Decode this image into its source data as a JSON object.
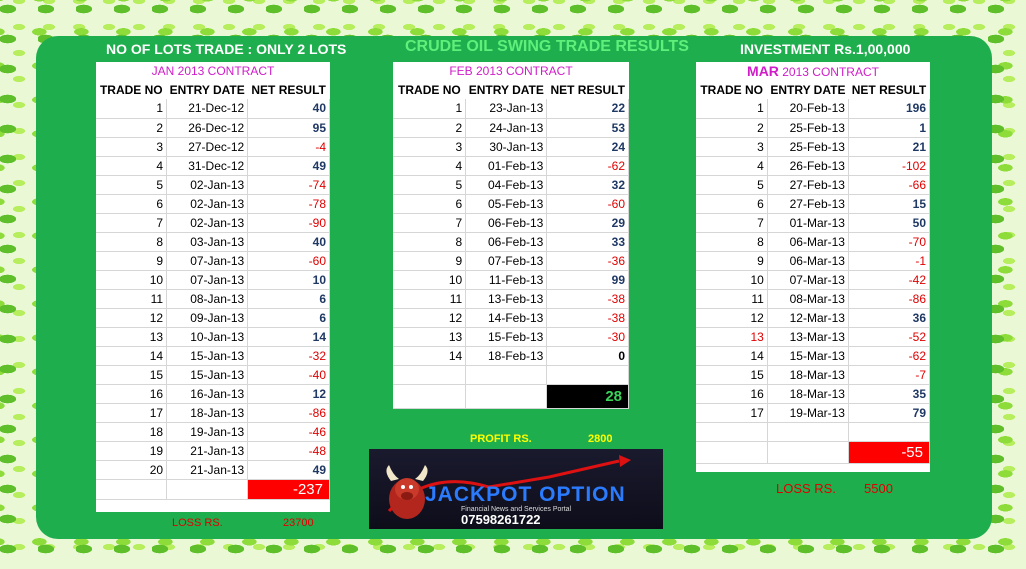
{
  "headers": {
    "lots": "NO OF LOTS TRADE : ONLY 2 LOTS",
    "title": "CRUDE OIL SWING TRADE RESULTS",
    "investment": "INVESTMENT  Rs.1,00,000"
  },
  "columns": {
    "no": "TRADE NO",
    "date": "ENTRY DATE",
    "result": "NET RESULT"
  },
  "jan": {
    "contract": "JAN 2013 CONTRACT",
    "rows": [
      [
        "1",
        "21-Dec-12",
        "40"
      ],
      [
        "2",
        "26-Dec-12",
        "95"
      ],
      [
        "3",
        "27-Dec-12",
        "-4"
      ],
      [
        "4",
        "31-Dec-12",
        "49"
      ],
      [
        "5",
        "02-Jan-13",
        "-74"
      ],
      [
        "6",
        "02-Jan-13",
        "-78"
      ],
      [
        "7",
        "02-Jan-13",
        "-90"
      ],
      [
        "8",
        "03-Jan-13",
        "40"
      ],
      [
        "9",
        "07-Jan-13",
        "-60"
      ],
      [
        "10",
        "07-Jan-13",
        "10"
      ],
      [
        "11",
        "08-Jan-13",
        "6"
      ],
      [
        "12",
        "09-Jan-13",
        "6"
      ],
      [
        "13",
        "10-Jan-13",
        "14"
      ],
      [
        "14",
        "15-Jan-13",
        "-32"
      ],
      [
        "15",
        "15-Jan-13",
        "-40"
      ],
      [
        "16",
        "16-Jan-13",
        "12"
      ],
      [
        "17",
        "18-Jan-13",
        "-86"
      ],
      [
        "18",
        "19-Jan-13",
        "-46"
      ],
      [
        "19",
        "21-Jan-13",
        "-48"
      ],
      [
        "20",
        "21-Jan-13",
        "49"
      ]
    ],
    "total": "-237",
    "loss_label": "LOSS RS.",
    "loss_value": "23700"
  },
  "feb": {
    "contract": "FEB 2013 CONTRACT",
    "rows": [
      [
        "1",
        "23-Jan-13",
        "22"
      ],
      [
        "2",
        "24-Jan-13",
        "53"
      ],
      [
        "3",
        "30-Jan-13",
        "24"
      ],
      [
        "4",
        "01-Feb-13",
        "-62"
      ],
      [
        "5",
        "04-Feb-13",
        "32"
      ],
      [
        "6",
        "05-Feb-13",
        "-60"
      ],
      [
        "7",
        "06-Feb-13",
        "29"
      ],
      [
        "8",
        "06-Feb-13",
        "33"
      ],
      [
        "9",
        "07-Feb-13",
        "-36"
      ],
      [
        "10",
        "11-Feb-13",
        "99"
      ],
      [
        "11",
        "13-Feb-13",
        "-38"
      ],
      [
        "12",
        "14-Feb-13",
        "-38"
      ],
      [
        "13",
        "15-Feb-13",
        "-30"
      ],
      [
        "14",
        "18-Feb-13",
        "0"
      ]
    ],
    "total": "28",
    "profit_label": "PROFIT RS.",
    "profit_value": "2800"
  },
  "mar": {
    "contract_prefix": "MAR",
    "contract_rest": " 2013 CONTRACT",
    "rows": [
      [
        "1",
        "20-Feb-13",
        "196"
      ],
      [
        "2",
        "25-Feb-13",
        "1"
      ],
      [
        "3",
        "25-Feb-13",
        "21"
      ],
      [
        "4",
        "26-Feb-13",
        "-102"
      ],
      [
        "5",
        "27-Feb-13",
        "-66"
      ],
      [
        "6",
        "27-Feb-13",
        "15"
      ],
      [
        "7",
        "01-Mar-13",
        "50"
      ],
      [
        "8",
        "06-Mar-13",
        "-70"
      ],
      [
        "9",
        "06-Mar-13",
        "-1"
      ],
      [
        "10",
        "07-Mar-13",
        "-42"
      ],
      [
        "11",
        "08-Mar-13",
        "-86"
      ],
      [
        "12",
        "12-Mar-13",
        "36"
      ],
      [
        "13",
        "13-Mar-13",
        "-52"
      ],
      [
        "14",
        "15-Mar-13",
        "-62"
      ],
      [
        "15",
        "18-Mar-13",
        "-7"
      ],
      [
        "16",
        "18-Mar-13",
        "35"
      ],
      [
        "17",
        "19-Mar-13",
        "79"
      ]
    ],
    "total": "-55",
    "loss_label": "LOSS RS.",
    "loss_value": "5500"
  },
  "logo": {
    "name": "JACKPOT OPTION",
    "tagline": "Financial News and Services Portal",
    "phone": "07598261722"
  },
  "colors": {
    "panel": "#1fae4d",
    "negative": "#e00000",
    "positive": "#1f3864",
    "contract": "#d01cc9"
  }
}
